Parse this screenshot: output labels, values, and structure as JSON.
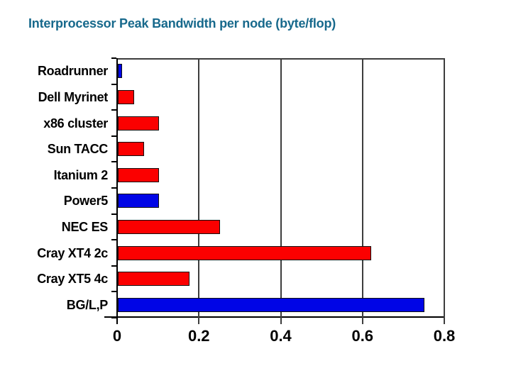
{
  "title": "Interprocessor Peak Bandwidth per node (byte/flop)",
  "styles": {
    "background": "#ffffff",
    "title_color": "#17698c",
    "label_color": "#000000",
    "frame_color": "#3d3d3d",
    "axis_color": "#000000",
    "bar_outline": "#101010",
    "red": "#fb0000",
    "blue": "#0005e6"
  },
  "chart_data": {
    "type": "bar",
    "orientation": "horizontal",
    "title": "Interprocessor Peak Bandwidth per node (byte/flop)",
    "xlabel": "",
    "ylabel": "",
    "categories": [
      "Roadrunner",
      "Dell Myrinet",
      "x86 cluster",
      "Sun TACC",
      "Itanium 2",
      "Power5",
      "NEC ES",
      "Cray XT4 2c",
      "Cray XT5 4c",
      "BG/L,P"
    ],
    "values": [
      0.01,
      0.04,
      0.1,
      0.065,
      0.1,
      0.1,
      0.25,
      0.62,
      0.175,
      0.75
    ],
    "bar_colors": [
      "#0005e6",
      "#fb0000",
      "#fb0000",
      "#fb0000",
      "#fb0000",
      "#0005e6",
      "#fb0000",
      "#fb0000",
      "#fb0000",
      "#0005e6"
    ],
    "xlim": [
      0,
      0.8
    ],
    "x_ticks": [
      "0",
      "0.2",
      "0.4",
      "0.6",
      "0.8"
    ],
    "x_tick_values": [
      0,
      0.2,
      0.4,
      0.6,
      0.8
    ],
    "gridlines": [
      0.2,
      0.4,
      0.6
    ],
    "grid": true,
    "legend": false
  }
}
